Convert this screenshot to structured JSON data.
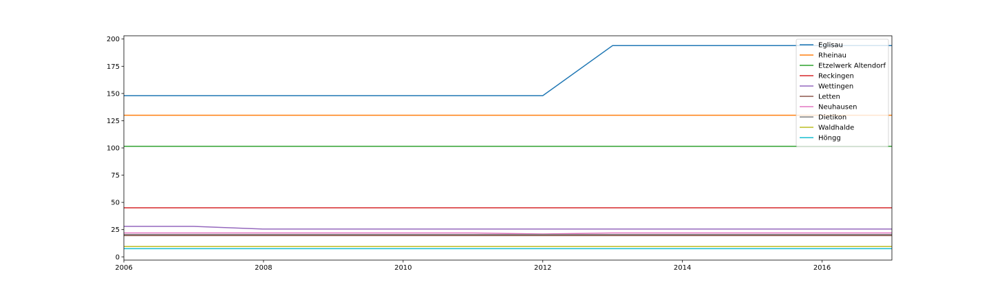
{
  "chart_data": {
    "type": "line",
    "title": "",
    "xlabel": "",
    "ylabel": "",
    "xlim": [
      2006,
      2017
    ],
    "ylim": [
      -3,
      203
    ],
    "x_ticks": [
      2006,
      2008,
      2010,
      2012,
      2014,
      2016
    ],
    "y_ticks": [
      0,
      25,
      50,
      75,
      100,
      125,
      150,
      175,
      200
    ],
    "grid": false,
    "legend_position": "top-right",
    "series": [
      {
        "name": "Eglisau",
        "color": "#1f77b4",
        "points": [
          [
            2006,
            148
          ],
          [
            2012,
            148
          ],
          [
            2013,
            194
          ],
          [
            2017,
            194
          ]
        ]
      },
      {
        "name": "Rheinau",
        "color": "#ff7f0e",
        "points": [
          [
            2006,
            130
          ],
          [
            2017,
            130
          ]
        ]
      },
      {
        "name": "Etzelwerk Altendorf",
        "color": "#2ca02c",
        "points": [
          [
            2006,
            101.5
          ],
          [
            2017,
            101.5
          ]
        ]
      },
      {
        "name": "Reckingen",
        "color": "#d62728",
        "points": [
          [
            2006,
            45
          ],
          [
            2017,
            45
          ]
        ]
      },
      {
        "name": "Wettingen",
        "color": "#9467bd",
        "points": [
          [
            2006,
            28
          ],
          [
            2007,
            28
          ],
          [
            2008,
            25.5
          ],
          [
            2017,
            25.5
          ]
        ]
      },
      {
        "name": "Letten",
        "color": "#8c564b",
        "points": [
          [
            2006,
            19.5
          ],
          [
            2017,
            19.5
          ]
        ]
      },
      {
        "name": "Neuhausen",
        "color": "#e377c2",
        "points": [
          [
            2006,
            22
          ],
          [
            2011,
            22
          ],
          [
            2012,
            21
          ],
          [
            2013,
            22
          ],
          [
            2017,
            22
          ]
        ]
      },
      {
        "name": "Dietikon",
        "color": "#7f7f7f",
        "points": [
          [
            2006,
            20.5
          ],
          [
            2017,
            20.5
          ]
        ]
      },
      {
        "name": "Waldhalde",
        "color": "#bcbd22",
        "points": [
          [
            2006,
            9.5
          ],
          [
            2017,
            9.5
          ]
        ]
      },
      {
        "name": "Höngg",
        "color": "#17becf",
        "points": [
          [
            2006,
            7.5
          ],
          [
            2017,
            7.5
          ]
        ]
      }
    ]
  }
}
